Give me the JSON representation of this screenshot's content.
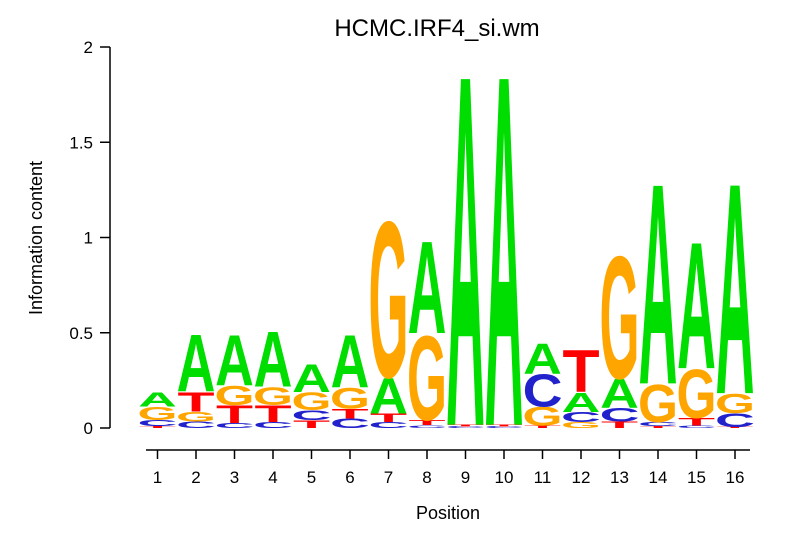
{
  "title": "HCMC.IRF4_si.wm",
  "y_axis": {
    "label": "Information content",
    "ticks": [
      "0",
      "0.5",
      "1",
      "1.5",
      "2"
    ],
    "tick_values": [
      0,
      0.5,
      1,
      1.5,
      2
    ]
  },
  "x_axis": {
    "label": "Position",
    "ticks": [
      "1",
      "2",
      "3",
      "4",
      "5",
      "6",
      "7",
      "8",
      "9",
      "10",
      "11",
      "12",
      "13",
      "14",
      "15",
      "16"
    ]
  },
  "chart_data": {
    "type": "bar",
    "subtype": "sequence_logo_stacked_letters",
    "title": "HCMC.IRF4_si.wm",
    "xlabel": "Position",
    "ylabel": "Information content",
    "ylim": [
      0,
      2
    ],
    "grid": false,
    "legend": "none",
    "categories": [
      1,
      2,
      3,
      4,
      5,
      6,
      7,
      8,
      9,
      10,
      11,
      12,
      13,
      14,
      15,
      16
    ],
    "colors": {
      "A": "#00DD00",
      "C": "#2222CC",
      "G": "#FFA500",
      "T": "#FF0000"
    },
    "stacks_note": "per position, letters bottom-to-top with information content (bits)",
    "stacks": [
      [
        [
          "T",
          0.01
        ],
        [
          "C",
          0.032
        ],
        [
          "G",
          0.07
        ],
        [
          "A",
          0.078
        ]
      ],
      [
        [
          "C",
          0.033
        ],
        [
          "G",
          0.053
        ],
        [
          "T",
          0.105
        ],
        [
          "A",
          0.309
        ]
      ],
      [
        [
          "C",
          0.026
        ],
        [
          "T",
          0.094
        ],
        [
          "G",
          0.105
        ],
        [
          "A",
          0.275
        ]
      ],
      [
        [
          "C",
          0.031
        ],
        [
          "T",
          0.09
        ],
        [
          "G",
          0.096
        ],
        [
          "A",
          0.297
        ]
      ],
      [
        [
          "T",
          0.042
        ],
        [
          "C",
          0.052
        ],
        [
          "G",
          0.096
        ],
        [
          "A",
          0.15
        ]
      ],
      [
        [
          "C",
          0.051
        ],
        [
          "T",
          0.052
        ],
        [
          "G",
          0.113
        ],
        [
          "A",
          0.284
        ]
      ],
      [
        [
          "C",
          0.032
        ],
        [
          "T",
          0.045
        ],
        [
          "A",
          0.192
        ],
        [
          "G",
          0.844
        ]
      ],
      [
        [
          "C",
          0.015
        ],
        [
          "T",
          0.027
        ],
        [
          "G",
          0.457
        ],
        [
          "A",
          0.499
        ]
      ],
      [
        [
          "C",
          0.009
        ],
        [
          "T",
          0.009
        ],
        [
          "A",
          1.898
        ]
      ],
      [
        [
          "C",
          0.009
        ],
        [
          "T",
          0.009
        ],
        [
          "A",
          1.898
        ]
      ],
      [
        [
          "T",
          0.012
        ],
        [
          "G",
          0.1
        ],
        [
          "C",
          0.175
        ],
        [
          "A",
          0.166
        ]
      ],
      [
        [
          "G",
          0.031
        ],
        [
          "C",
          0.054
        ],
        [
          "A",
          0.105
        ],
        [
          "T",
          0.228
        ]
      ],
      [
        [
          "T",
          0.033
        ],
        [
          "C",
          0.072
        ],
        [
          "A",
          0.157
        ],
        [
          "G",
          0.662
        ]
      ],
      [
        [
          "T",
          0.01
        ],
        [
          "C",
          0.021
        ],
        [
          "G",
          0.203
        ],
        [
          "A",
          1.085
        ]
      ],
      [
        [
          "C",
          0.012
        ],
        [
          "T",
          0.04
        ],
        [
          "G",
          0.262
        ],
        [
          "A",
          0.685
        ]
      ],
      [
        [
          "T",
          0.005
        ],
        [
          "C",
          0.073
        ],
        [
          "G",
          0.105
        ],
        [
          "A",
          1.14
        ]
      ]
    ]
  }
}
